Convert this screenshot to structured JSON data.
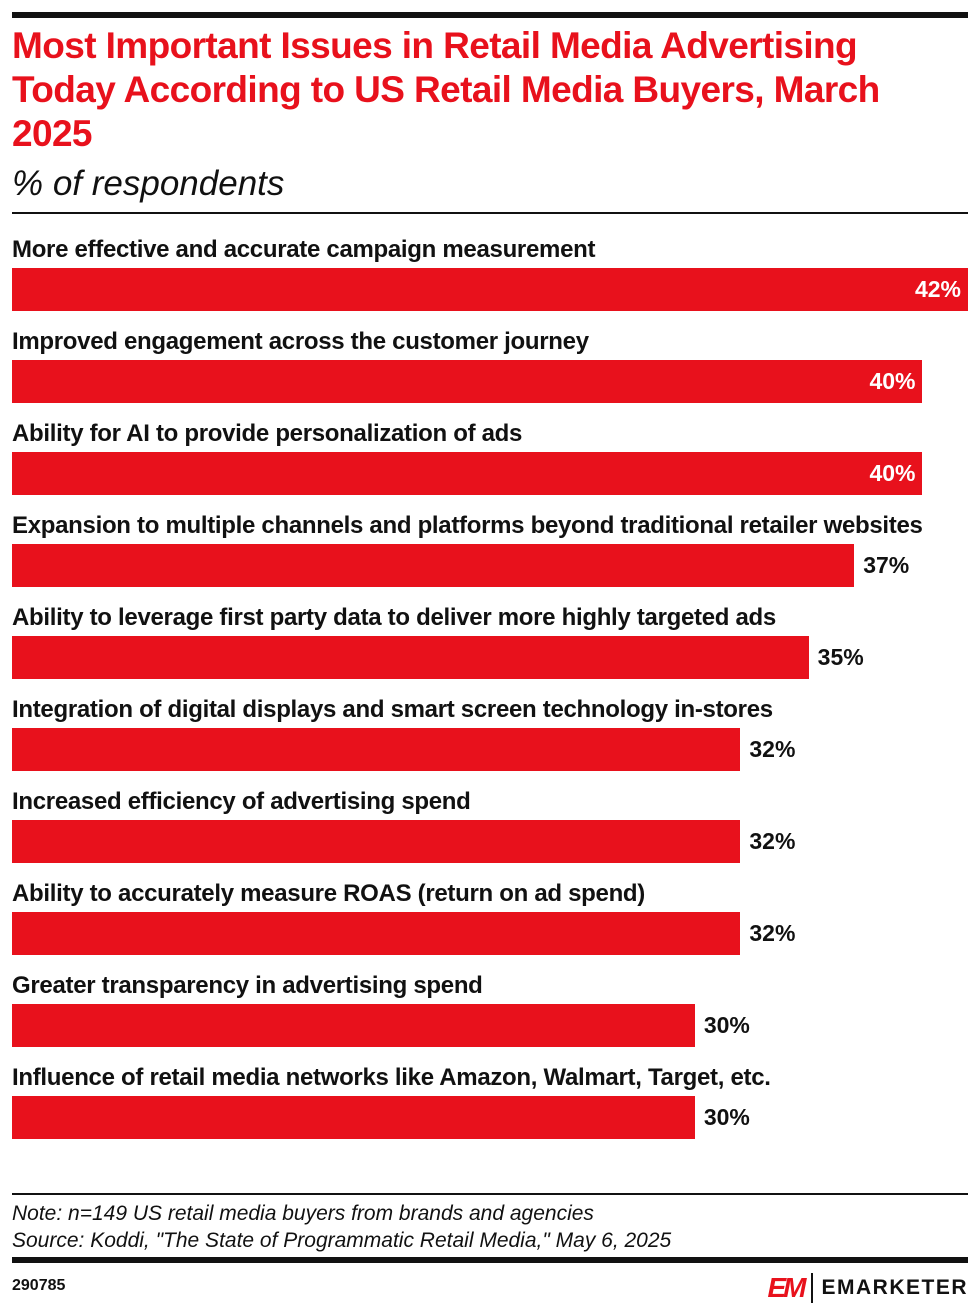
{
  "chart_data": {
    "type": "bar",
    "orientation": "horizontal",
    "title": "Most Important Issues in Retail Media Advertising Today According to US Retail Media Buyers, March 2025",
    "subtitle": "% of respondents",
    "categories": [
      "More effective and accurate campaign measurement",
      "Improved engagement across the customer journey",
      "Ability for AI to provide personalization of ads",
      "Expansion to multiple channels and platforms beyond traditional retailer websites",
      "Ability to leverage first party data to deliver more highly targeted ads",
      "Integration of digital displays and smart screen technology in-stores",
      "Increased efficiency of advertising spend",
      "Ability to accurately measure ROAS (return on ad spend)",
      "Greater transparency in advertising spend",
      "Influence of retail media networks like Amazon, Walmart, Target, etc."
    ],
    "values": [
      42,
      40,
      40,
      37,
      35,
      32,
      32,
      32,
      30,
      30
    ],
    "value_labels": [
      "42%",
      "40%",
      "40%",
      "37%",
      "35%",
      "32%",
      "32%",
      "32%",
      "30%",
      "30%"
    ],
    "xlim": [
      0,
      42
    ],
    "grid": false,
    "bar_color": "#e8111c"
  },
  "footer": {
    "note": "Note: n=149 US retail media buyers from brands and agencies",
    "source": "Source: Koddi, \"The State of Programmatic Retail Media,\" May 6, 2025",
    "chart_id": "290785",
    "logo_text": "EMARKETER",
    "logo_mark": "EM"
  }
}
